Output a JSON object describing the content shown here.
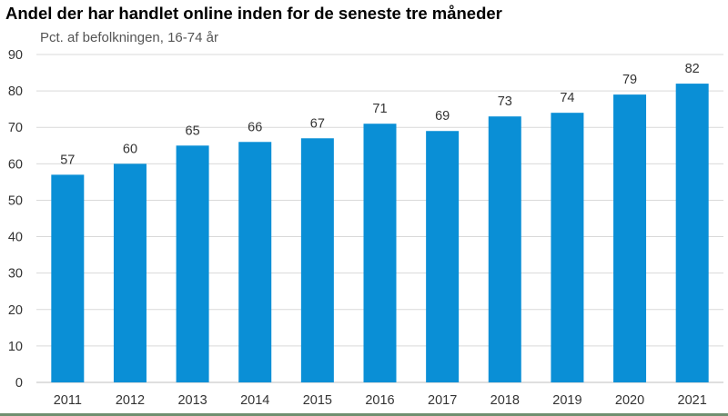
{
  "title": "Andel der har handlet online inden for de seneste tre måneder",
  "subtitle": "Pct. af befolkningen, 16-74 år",
  "colors": {
    "bar": "#0a8fd6",
    "grid": "#d9d9d9",
    "text": "#333333",
    "baseline": "#bfbfbf"
  },
  "chart_data": {
    "type": "bar",
    "title": "Andel der har handlet online inden for de seneste tre måneder",
    "subtitle": "Pct. af befolkningen, 16-74 år",
    "xlabel": "",
    "ylabel": "Pct. af befolkningen, 16-74 år",
    "categories": [
      "2011",
      "2012",
      "2013",
      "2014",
      "2015",
      "2016",
      "2017",
      "2018",
      "2019",
      "2020",
      "2021"
    ],
    "values": [
      57,
      60,
      65,
      66,
      67,
      71,
      69,
      73,
      74,
      79,
      82
    ],
    "ylim": [
      0,
      90
    ],
    "yticks": [
      0,
      10,
      20,
      30,
      40,
      50,
      60,
      70,
      80,
      90
    ],
    "grid": "horizontal",
    "data_labels": true,
    "legend": "none"
  }
}
